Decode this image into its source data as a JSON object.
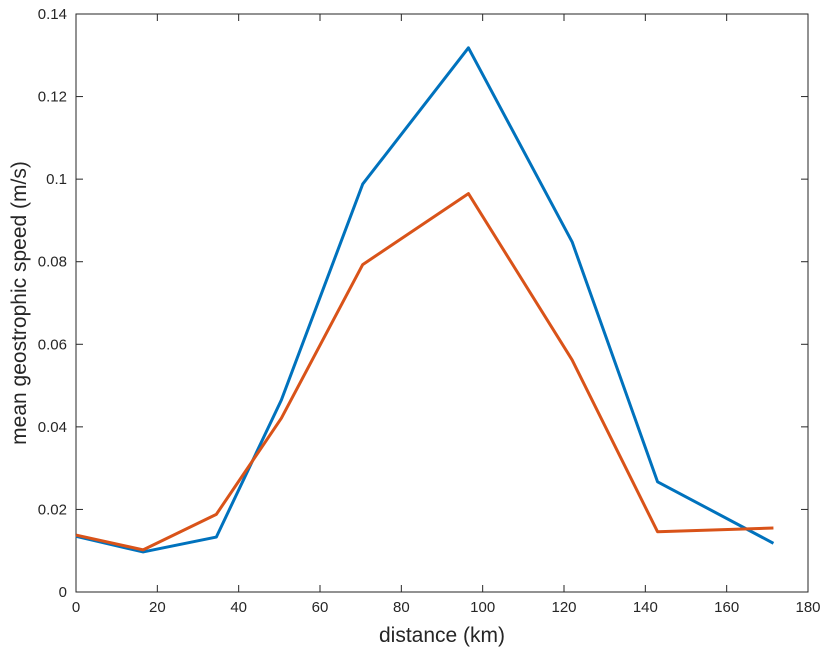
{
  "chart_data": {
    "type": "line",
    "title": "",
    "xlabel": "distance (km)",
    "ylabel": "mean geostrophic speed (m/s)",
    "xlim": [
      0,
      180
    ],
    "ylim": [
      0,
      0.14
    ],
    "x_ticks": [
      0,
      20,
      40,
      60,
      80,
      100,
      120,
      140,
      160,
      180
    ],
    "y_ticks": [
      0,
      0.02,
      0.04,
      0.06,
      0.08,
      0.1,
      0.12,
      0.14
    ],
    "x_tick_labels": [
      "0",
      "20",
      "40",
      "60",
      "80",
      "100",
      "120",
      "140",
      "160",
      "180"
    ],
    "y_tick_labels": [
      "0",
      "0.02",
      "0.04",
      "0.06",
      "0.08",
      "0.1",
      "0.12",
      "0.14"
    ],
    "grid": false,
    "legend": "none",
    "series": [
      {
        "color": "#0072BD",
        "x": [
          0,
          16.5,
          34.5,
          50.5,
          70.5,
          96.5,
          122,
          143,
          171.5
        ],
        "y": [
          0.0135,
          0.0097,
          0.0133,
          0.0465,
          0.0988,
          0.1318,
          0.0848,
          0.0267,
          0.0118
        ]
      },
      {
        "color": "#D95319",
        "x": [
          0,
          16.5,
          34.5,
          50.5,
          70.5,
          96.5,
          122,
          143,
          171.5
        ],
        "y": [
          0.0138,
          0.0102,
          0.0188,
          0.0421,
          0.0793,
          0.0965,
          0.0562,
          0.0146,
          0.0155
        ]
      }
    ]
  }
}
